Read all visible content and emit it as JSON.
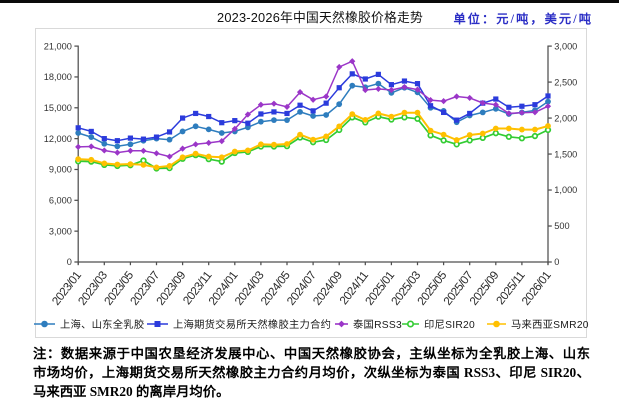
{
  "page": {
    "title": "2023-2026年中国天然橡胶价格走势",
    "unit_label": "单位：元/吨，美元/吨"
  },
  "chart_data": {
    "type": "line",
    "title": "2023-2026年中国天然橡胶价格走势",
    "unit": "元/吨，美元/吨",
    "categories": [
      "2023/01",
      "2023/02",
      "2023/03",
      "2023/04",
      "2023/05",
      "2023/06",
      "2023/07",
      "2023/08",
      "2023/09",
      "2023/10",
      "2023/11",
      "2023/12",
      "2024/01",
      "2024/02",
      "2024/03",
      "2024/04",
      "2024/05",
      "2024/06",
      "2024/07",
      "2024/08",
      "2024/09",
      "2024/10",
      "2024/11",
      "2024/12",
      "2025/01",
      "2025/02",
      "2025/03",
      "2025/04",
      "2025/05",
      "2025/06",
      "2025/07",
      "2025/08",
      "2025/09",
      "2025/10",
      "2025/11",
      "2025/12",
      "2026/01"
    ],
    "x_tick_labels": [
      "2023/01",
      "2023/03",
      "2023/05",
      "2023/07",
      "2023/09",
      "2023/11",
      "2024/01",
      "2024/03",
      "2024/05",
      "2024/07",
      "2024/09",
      "2024/11",
      "2025/01",
      "2025/03",
      "2025/05",
      "2025/07",
      "2025/09",
      "2025/11",
      "2026/01"
    ],
    "left_axis": {
      "min": 0,
      "max": 21000,
      "step": 3000,
      "tick_labels": [
        "21,000",
        "18,000",
        "15,000",
        "12,000",
        "9,000",
        "6,000",
        "3,000",
        "0"
      ]
    },
    "right_axis": {
      "min": 0,
      "max": 3000,
      "step": 500,
      "tick_labels": [
        "3,000",
        "2,500",
        "2,000",
        "1,500",
        "1,000",
        "500",
        "0"
      ]
    },
    "grid": false,
    "legend_position": "bottom",
    "series": [
      {
        "name": "上海、山东全乳胶",
        "axis": "left",
        "marker": "circle",
        "color": "#2e7dbe",
        "values": [
          12550,
          12150,
          11500,
          11250,
          11450,
          11800,
          12000,
          11900,
          12700,
          13200,
          12900,
          12550,
          12700,
          13100,
          13650,
          13800,
          13800,
          14600,
          14200,
          14300,
          15350,
          17150,
          17000,
          17350,
          16450,
          16950,
          16500,
          15000,
          14700,
          13600,
          14250,
          14550,
          14900,
          14400,
          14550,
          14750,
          15600
        ]
      },
      {
        "name": "上海期货交易所天然橡胶主力合约",
        "axis": "left",
        "marker": "square",
        "color": "#2b3bdc",
        "values": [
          13050,
          12700,
          12000,
          11800,
          12050,
          11950,
          12150,
          12650,
          14000,
          14450,
          14150,
          13550,
          13750,
          13500,
          14400,
          14600,
          14450,
          15250,
          14700,
          15450,
          16950,
          18300,
          17800,
          18250,
          17250,
          17600,
          17350,
          15200,
          14550,
          13800,
          14450,
          15450,
          15850,
          15050,
          15150,
          15300,
          16150
        ]
      },
      {
        "name": "泰国RSS3",
        "axis": "right",
        "marker": "diamond",
        "color": "#9b36c8",
        "values": [
          1600,
          1605,
          1550,
          1520,
          1545,
          1545,
          1510,
          1465,
          1575,
          1635,
          1655,
          1680,
          1850,
          2050,
          2185,
          2200,
          2155,
          2360,
          2255,
          2300,
          2710,
          2790,
          2390,
          2405,
          2390,
          2430,
          2395,
          2250,
          2235,
          2300,
          2280,
          2210,
          2185,
          2065,
          2075,
          2080,
          2165
        ]
      },
      {
        "name": "印尼SIR20",
        "axis": "right",
        "marker": "circle-open",
        "color": "#33cc33",
        "values": [
          1400,
          1395,
          1350,
          1335,
          1345,
          1410,
          1300,
          1305,
          1435,
          1485,
          1430,
          1395,
          1515,
          1530,
          1605,
          1605,
          1610,
          1730,
          1665,
          1695,
          1835,
          2010,
          1940,
          2020,
          1980,
          2010,
          1990,
          1760,
          1690,
          1635,
          1690,
          1725,
          1790,
          1740,
          1720,
          1750,
          1835
        ]
      },
      {
        "name": "马来西亚SMR20",
        "axis": "right",
        "marker": "circle",
        "color": "#ffc000",
        "values": [
          1430,
          1420,
          1370,
          1355,
          1360,
          1350,
          1315,
          1335,
          1455,
          1505,
          1465,
          1455,
          1535,
          1550,
          1635,
          1630,
          1640,
          1770,
          1700,
          1745,
          1885,
          2055,
          1975,
          2065,
          2020,
          2075,
          2075,
          1825,
          1770,
          1695,
          1765,
          1785,
          1855,
          1855,
          1840,
          1840,
          1890
        ]
      }
    ]
  },
  "note": {
    "lines": [
      "注：数据来源于中国农垦经济发展中心、中国天然橡胶协会，主纵坐标为全乳胶上海、山东",
      "市场均价，上海期货交易所天然橡胶主力合约月均价，次纵坐标为泰国 RSS3、印尼 SIR20、",
      "马来西亚 SMR20 的离岸月均价。"
    ]
  }
}
